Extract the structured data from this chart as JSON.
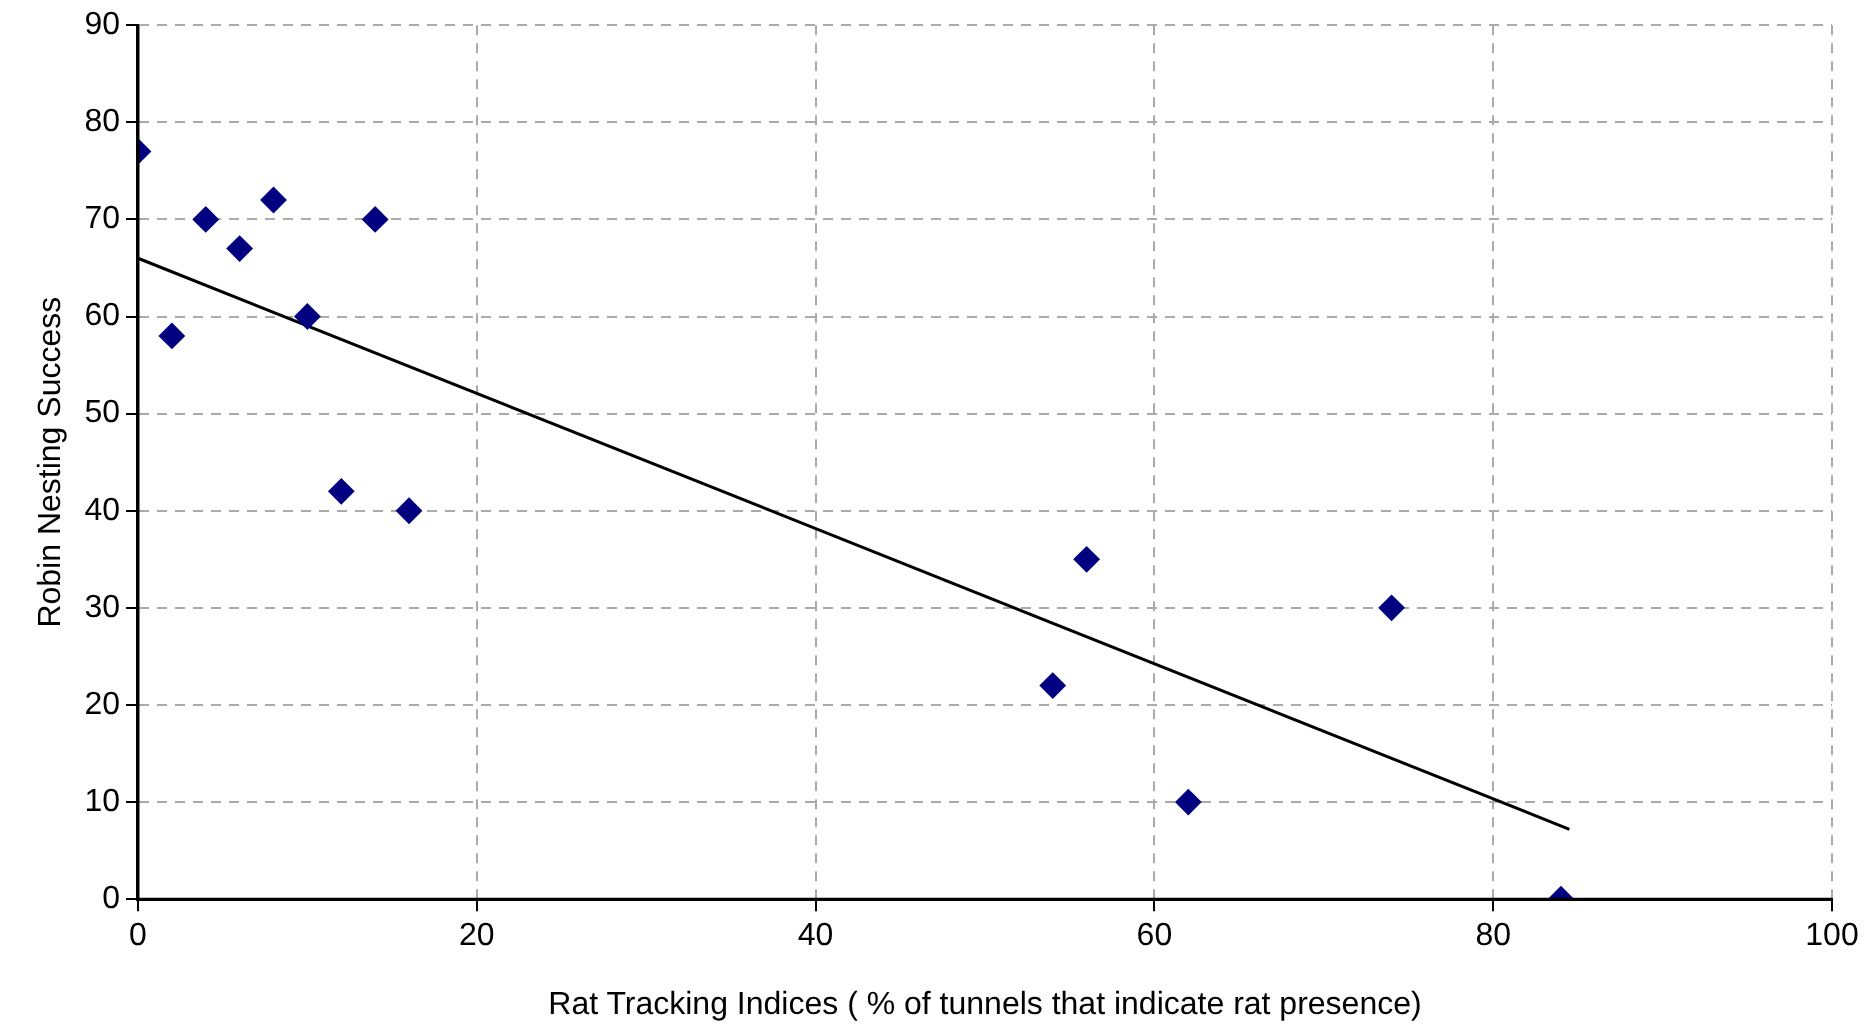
{
  "chart_data": {
    "type": "scatter",
    "xlabel": "Rat Tracking Indices ( % of tunnels that indicate rat presence)",
    "ylabel": "Robin Nesting Success",
    "xlim": [
      0,
      100
    ],
    "xticks": [
      0,
      20,
      40,
      60,
      80,
      100
    ],
    "ylim": [
      0,
      90
    ],
    "yticks": [
      0,
      10,
      20,
      30,
      40,
      50,
      60,
      70,
      80,
      90
    ],
    "grid": true,
    "legend": false,
    "marker": "diamond",
    "series": [
      {
        "type": "scatter",
        "color": "#000080",
        "x": [
          0,
          2,
          4,
          6,
          8,
          10,
          12,
          14,
          16,
          54,
          56,
          62,
          74,
          84
        ],
        "values": [
          77,
          58,
          70,
          67,
          72,
          60,
          42,
          70,
          40,
          22,
          35,
          10,
          30,
          0
        ]
      },
      {
        "type": "line",
        "color": "#000000",
        "x": [
          0,
          84.5
        ],
        "values": [
          66,
          7.2
        ],
        "marker": "none",
        "line_style": "solid"
      }
    ]
  }
}
